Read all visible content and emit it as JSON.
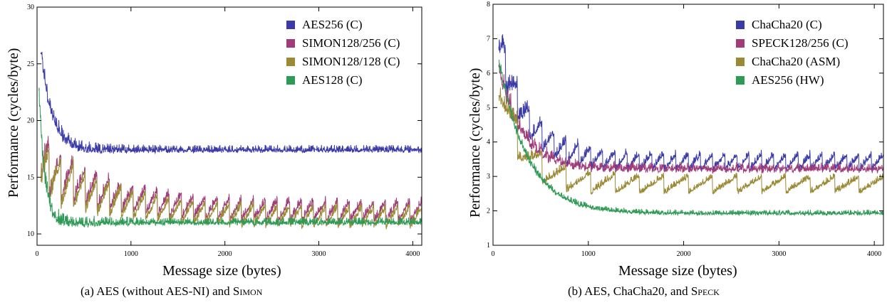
{
  "figure": {
    "captions": [
      {
        "prefix": "(a)",
        "text_before": "AES (without AES-NI) and ",
        "smallcaps": "Simon",
        "text_after": ""
      },
      {
        "prefix": "(b)",
        "text_before": "AES, ChaCha20, and ",
        "smallcaps": "Speck",
        "text_after": ""
      }
    ]
  },
  "chart_data": [
    {
      "type": "line",
      "xlabel": "Message size (bytes)",
      "ylabel": "Performance (cycles/byte)",
      "xlim": [
        0,
        4096
      ],
      "ylim": [
        9,
        30
      ],
      "xticks": [
        0,
        1000,
        2000,
        3000,
        4000
      ],
      "yticks": [
        10,
        15,
        20,
        25,
        30
      ],
      "grid": false,
      "legend_placement": "top-right",
      "series": [
        {
          "name": "AES256 (C)",
          "color": "#3b3ba8",
          "base": 17.5,
          "amp": 9,
          "decay": 120,
          "saw": 0,
          "period": 128,
          "start": 40,
          "noise": 0.35
        },
        {
          "name": "SIMON128/256 (C)",
          "color": "#a03c7a",
          "base": 12.1,
          "amp": 4.5,
          "decay": 700,
          "saw": 1.8,
          "period": 128,
          "start": 40,
          "noise": 0.4
        },
        {
          "name": "SIMON128/128 (C)",
          "color": "#9a8a35",
          "base": 11.6,
          "amp": 4.5,
          "decay": 700,
          "saw": 1.8,
          "period": 128,
          "start": 40,
          "noise": 0.4
        },
        {
          "name": "AES128 (C)",
          "color": "#2f9a55",
          "base": 11.1,
          "amp": 12,
          "decay": 60,
          "saw": 0,
          "period": 128,
          "start": 20,
          "noise": 0.35
        }
      ]
    },
    {
      "type": "line",
      "xlabel": "Message size (bytes)",
      "ylabel": "Performance (cycles/byte)",
      "xlim": [
        0,
        4096
      ],
      "ylim": [
        1,
        8
      ],
      "xticks": [
        0,
        1000,
        2000,
        3000,
        4000
      ],
      "yticks": [
        1,
        2,
        3,
        4,
        5,
        6,
        7,
        8
      ],
      "grid": false,
      "legend_placement": "top-right",
      "series": [
        {
          "name": "ChaCha20 (C)",
          "color": "#3b3ba8",
          "base": 3.45,
          "amp": 3.5,
          "decay": 300,
          "saw": 0.45,
          "period": 128,
          "start": 60,
          "noise": 0.12
        },
        {
          "name": "SPECK128/256 (C)",
          "color": "#a03c7a",
          "base": 3.25,
          "amp": 3.0,
          "decay": 250,
          "saw": 0.1,
          "period": 64,
          "start": 60,
          "noise": 0.12
        },
        {
          "name": "ChaCha20 (ASM)",
          "color": "#9a8a35",
          "base": 2.8,
          "amp": 3.0,
          "decay": 250,
          "saw": 0.45,
          "period": 256,
          "start": 60,
          "noise": 0.1
        },
        {
          "name": "AES256 (HW)",
          "color": "#2f9a55",
          "base": 1.95,
          "amp": 4.5,
          "decay": 300,
          "saw": 0,
          "period": 128,
          "start": 60,
          "noise": 0.08
        }
      ]
    }
  ]
}
